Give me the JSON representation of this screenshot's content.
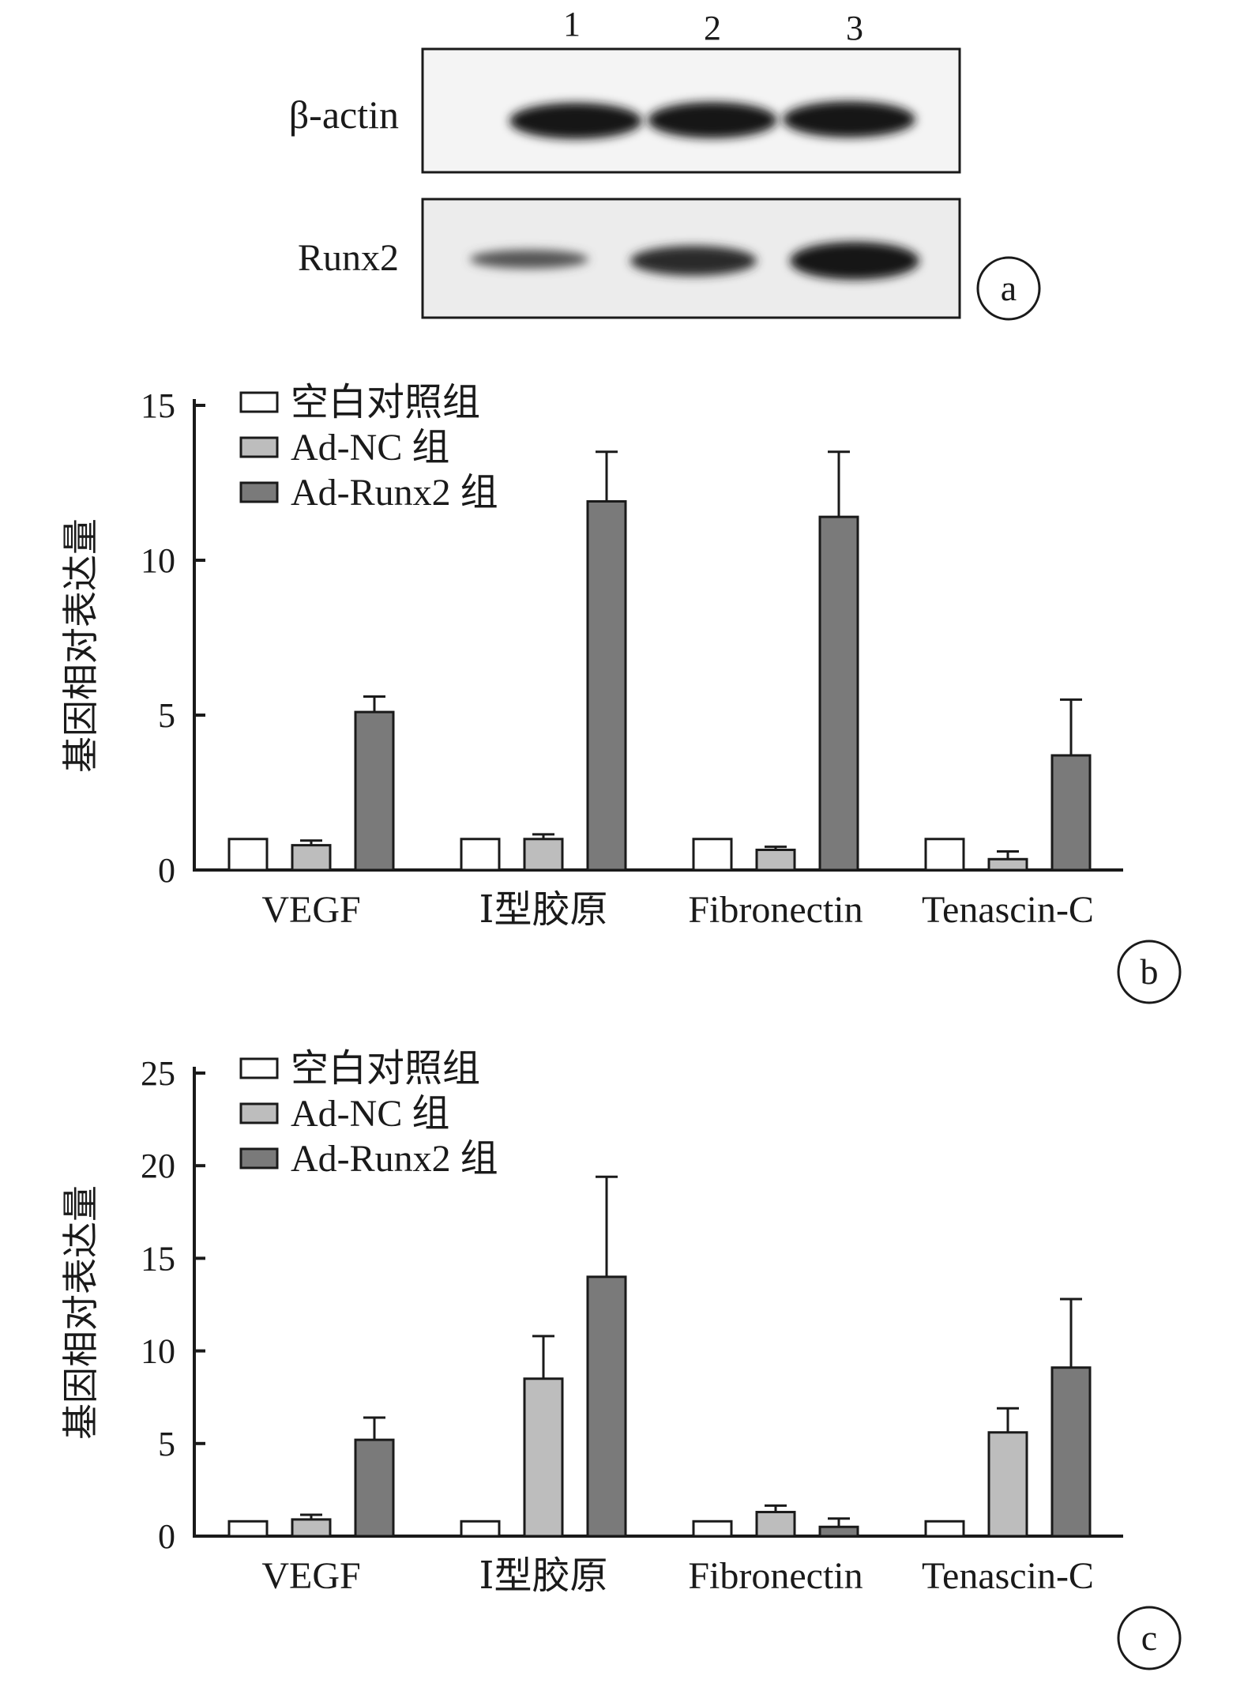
{
  "western_blot": {
    "lane_labels": [
      "1",
      "2",
      "3"
    ],
    "row_labels": [
      "β-actin",
      "Runx2"
    ],
    "panel_label": "a"
  },
  "colors": {
    "blank_control": "#ffffff",
    "ad_nc": "#bdbdbd",
    "ad_runx2": "#7a7a7a",
    "axis": "#1a1a1a"
  },
  "chart_data": [
    {
      "type": "bar",
      "panel_label": "b",
      "ylabel": "基因相对表达量",
      "ylim": [
        0,
        15
      ],
      "yticks": [
        0,
        5,
        10,
        15
      ],
      "categories": [
        "VEGF",
        "Ⅰ型胶原",
        "Fibronectin",
        "Tenascin-C"
      ],
      "legend_position": "top-left",
      "series": [
        {
          "name": "空白对照组",
          "values": [
            1.0,
            1.0,
            1.0,
            1.0
          ],
          "errors": [
            0,
            0,
            0,
            0
          ]
        },
        {
          "name": "Ad-NC 组",
          "values": [
            0.8,
            1.0,
            0.65,
            0.35
          ],
          "errors": [
            0.15,
            0.15,
            0.1,
            0.25
          ]
        },
        {
          "name": "Ad-Runx2 组",
          "values": [
            5.1,
            11.9,
            11.4,
            3.7
          ],
          "errors": [
            0.5,
            1.6,
            2.1,
            1.8
          ]
        }
      ]
    },
    {
      "type": "bar",
      "panel_label": "c",
      "ylabel": "基因相对表达量",
      "ylim": [
        0,
        25
      ],
      "yticks": [
        0,
        5,
        10,
        15,
        20,
        25
      ],
      "categories": [
        "VEGF",
        "Ⅰ型胶原",
        "Fibronectin",
        "Tenascin-C"
      ],
      "legend_position": "top-left",
      "series": [
        {
          "name": "空白对照组",
          "values": [
            0.8,
            0.8,
            0.8,
            0.8
          ],
          "errors": [
            0,
            0,
            0,
            0
          ]
        },
        {
          "name": "Ad-NC 组",
          "values": [
            0.9,
            8.5,
            1.3,
            5.6
          ],
          "errors": [
            0.25,
            2.3,
            0.35,
            1.3
          ]
        },
        {
          "name": "Ad-Runx2 组",
          "values": [
            5.2,
            14.0,
            0.5,
            9.1
          ],
          "errors": [
            1.2,
            5.4,
            0.45,
            3.7
          ]
        }
      ]
    }
  ]
}
